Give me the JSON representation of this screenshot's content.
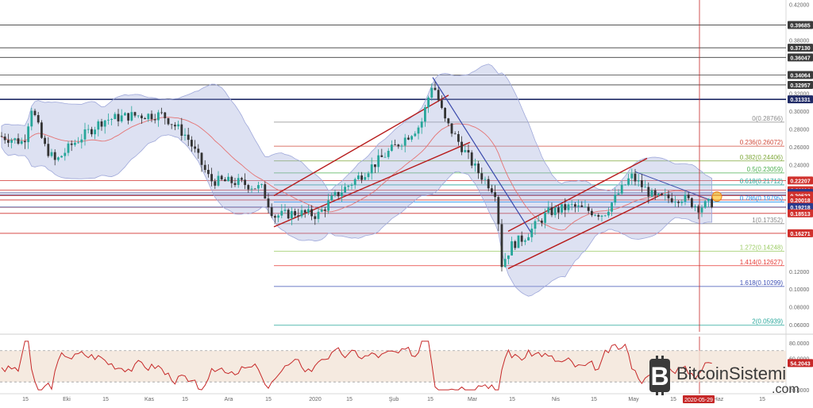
{
  "chart_data": [
    {
      "type": "candlestick",
      "title": "",
      "price_axis": {
        "ticks": [
          "0.42000",
          "0.38000",
          "0.32000",
          "0.30000",
          "0.28000",
          "0.26000",
          "0.24000",
          "0.12000",
          "0.10000",
          "0.08000",
          "0.06000"
        ],
        "tick_values": [
          0.42,
          0.38,
          0.32,
          0.3,
          0.28,
          0.26,
          0.24,
          0.12,
          0.1,
          0.08,
          0.06
        ],
        "ylim": [
          0.052,
          0.425
        ]
      },
      "time_axis": {
        "labels": [
          "15",
          "Eki",
          "15",
          "Kas",
          "15",
          "Ara",
          "15",
          "2020",
          "15",
          "Şub",
          "15",
          "Mar",
          "15",
          "Nis",
          "15",
          "May",
          "15",
          "Haz",
          "15"
        ],
        "current_date_label": "2020-05-29"
      },
      "horizontal_levels": [
        {
          "label": "0.39685",
          "value": 0.39685,
          "color": "#3b3b3b"
        },
        {
          "label": "0.37130",
          "value": 0.3713,
          "color": "#3b3b3b"
        },
        {
          "label": "0.36047",
          "value": 0.36047,
          "color": "#3b3b3b"
        },
        {
          "label": "0.34064",
          "value": 0.34064,
          "color": "#3b3b3b"
        },
        {
          "label": "0.32957",
          "value": 0.32957,
          "color": "#3b3b3b"
        },
        {
          "label": "0.31331",
          "value": 0.31331,
          "color": "#1f2a66"
        },
        {
          "label": "0.22207",
          "value": 0.22207,
          "color": "#d0312d"
        },
        {
          "label": "0.21114",
          "value": 0.21114,
          "color": "#d0312d"
        },
        {
          "label": "0.20819",
          "value": 0.20819,
          "color": "#2b3a8c"
        },
        {
          "label": "0.20593",
          "value": 0.20593,
          "color": "#2b3a8c"
        },
        {
          "label": "0.20522",
          "value": 0.20522,
          "color": "#d0312d"
        },
        {
          "label": "0.20018",
          "value": 0.20018,
          "color": "#d0312d"
        },
        {
          "label": "0.19201",
          "value": 0.19201,
          "color": "#d0312d"
        },
        {
          "label": "0.19218",
          "value": 0.19218,
          "color": "#2b3a8c"
        },
        {
          "label": "0.18513",
          "value": 0.18513,
          "color": "#d0312d"
        },
        {
          "label": "0.16271",
          "value": 0.16271,
          "color": "#d0312d"
        }
      ],
      "fibonacci": [
        {
          "label": "0(0.28766)",
          "value": 0.28766,
          "color": "#8a8a8a"
        },
        {
          "label": "0.236(0.26072)",
          "value": 0.26072,
          "color": "#d04a3a"
        },
        {
          "label": "0.382(0.24406)",
          "value": 0.24406,
          "color": "#7fa83a"
        },
        {
          "label": "0.5(0.23059)",
          "value": 0.23059,
          "color": "#4caf50"
        },
        {
          "label": "0.618(0.21712)",
          "value": 0.21712,
          "color": "#26a69a"
        },
        {
          "label": "0.786(0.19795)",
          "value": 0.19795,
          "color": "#2196f3"
        },
        {
          "label": "1(0.17352)",
          "value": 0.17352,
          "color": "#8a8a8a"
        },
        {
          "label": "1.272(0.14248)",
          "value": 0.14248,
          "color": "#9ccc65"
        },
        {
          "label": "1.414(0.12627)",
          "value": 0.12627,
          "color": "#e53935"
        },
        {
          "label": "1.618(0.10299)",
          "value": 0.10299,
          "color": "#3f51b5"
        },
        {
          "label": "2(0.05939)",
          "value": 0.05939,
          "color": "#26a69a"
        }
      ],
      "colors": {
        "up": "#26a69a",
        "down": "#333333",
        "band": "#9fa8da",
        "basis": "#e57373",
        "channel": "#b71c1c",
        "trend": "#3949ab"
      }
    },
    {
      "type": "line",
      "title": "",
      "rsi_axis": {
        "ticks": [
          "80.0000",
          "60.0000",
          "20.0000"
        ],
        "tick_values": [
          80,
          60,
          20
        ],
        "ylim": [
          15,
          88
        ]
      },
      "current_value_label": "54.2043",
      "current_value": 54.2043,
      "levels": [
        70,
        30
      ]
    }
  ],
  "watermark": {
    "logo_icon": "bitcoin-b-logo-icon",
    "brand": "BitcoinSistemi",
    "domain": ".com"
  }
}
